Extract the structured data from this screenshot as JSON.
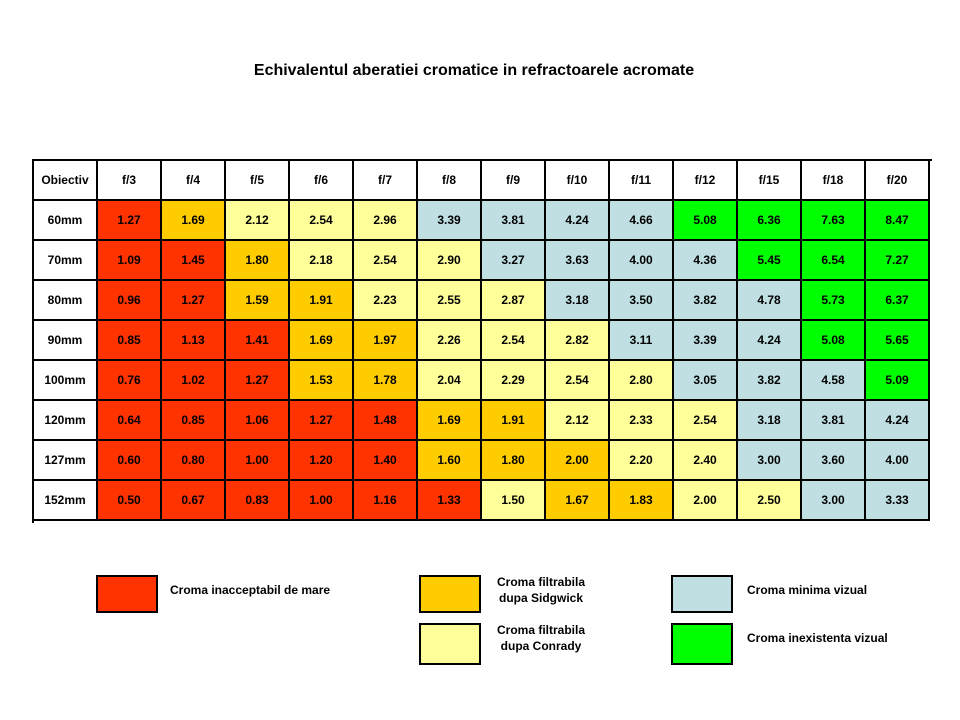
{
  "colors": {
    "red": "#ff3300",
    "orange": "#ffcc00",
    "yellow": "#ffff99",
    "blue": "#bfdfe3",
    "green": "#00ff00"
  },
  "chart_data": {
    "type": "table",
    "title": "Echivalentul aberatiei cromatice in refractoarele acromate",
    "corner_label": "Obiectiv",
    "columns": [
      "f/3",
      "f/4",
      "f/5",
      "f/6",
      "f/7",
      "f/8",
      "f/9",
      "f/10",
      "f/11",
      "f/12",
      "f/15",
      "f/18",
      "f/20"
    ],
    "rows": [
      {
        "label": "60mm",
        "values": [
          "1.27",
          "1.69",
          "2.12",
          "2.54",
          "2.96",
          "3.39",
          "3.81",
          "4.24",
          "4.66",
          "5.08",
          "6.36",
          "7.63",
          "8.47"
        ],
        "classes": [
          "red",
          "orange",
          "yellow",
          "yellow",
          "yellow",
          "blue",
          "blue",
          "blue",
          "blue",
          "green",
          "green",
          "green",
          "green"
        ]
      },
      {
        "label": "70mm",
        "values": [
          "1.09",
          "1.45",
          "1.80",
          "2.18",
          "2.54",
          "2.90",
          "3.27",
          "3.63",
          "4.00",
          "4.36",
          "5.45",
          "6.54",
          "7.27"
        ],
        "classes": [
          "red",
          "red",
          "orange",
          "yellow",
          "yellow",
          "yellow",
          "blue",
          "blue",
          "blue",
          "blue",
          "green",
          "green",
          "green"
        ]
      },
      {
        "label": "80mm",
        "values": [
          "0.96",
          "1.27",
          "1.59",
          "1.91",
          "2.23",
          "2.55",
          "2.87",
          "3.18",
          "3.50",
          "3.82",
          "4.78",
          "5.73",
          "6.37"
        ],
        "classes": [
          "red",
          "red",
          "orange",
          "orange",
          "yellow",
          "yellow",
          "yellow",
          "blue",
          "blue",
          "blue",
          "blue",
          "green",
          "green"
        ]
      },
      {
        "label": "90mm",
        "values": [
          "0.85",
          "1.13",
          "1.41",
          "1.69",
          "1.97",
          "2.26",
          "2.54",
          "2.82",
          "3.11",
          "3.39",
          "4.24",
          "5.08",
          "5.65"
        ],
        "classes": [
          "red",
          "red",
          "red",
          "orange",
          "orange",
          "yellow",
          "yellow",
          "yellow",
          "blue",
          "blue",
          "blue",
          "green",
          "green"
        ]
      },
      {
        "label": "100mm",
        "values": [
          "0.76",
          "1.02",
          "1.27",
          "1.53",
          "1.78",
          "2.04",
          "2.29",
          "2.54",
          "2.80",
          "3.05",
          "3.82",
          "4.58",
          "5.09"
        ],
        "classes": [
          "red",
          "red",
          "red",
          "orange",
          "orange",
          "yellow",
          "yellow",
          "yellow",
          "yellow",
          "blue",
          "blue",
          "blue",
          "green"
        ]
      },
      {
        "label": "120mm",
        "values": [
          "0.64",
          "0.85",
          "1.06",
          "1.27",
          "1.48",
          "1.69",
          "1.91",
          "2.12",
          "2.33",
          "2.54",
          "3.18",
          "3.81",
          "4.24"
        ],
        "classes": [
          "red",
          "red",
          "red",
          "red",
          "red",
          "orange",
          "orange",
          "yellow",
          "yellow",
          "yellow",
          "blue",
          "blue",
          "blue"
        ]
      },
      {
        "label": "127mm",
        "values": [
          "0.60",
          "0.80",
          "1.00",
          "1.20",
          "1.40",
          "1.60",
          "1.80",
          "2.00",
          "2.20",
          "2.40",
          "3.00",
          "3.60",
          "4.00"
        ],
        "classes": [
          "red",
          "red",
          "red",
          "red",
          "red",
          "orange",
          "orange",
          "orange",
          "yellow",
          "yellow",
          "blue",
          "blue",
          "blue"
        ]
      },
      {
        "label": "152mm",
        "values": [
          "0.50",
          "0.67",
          "0.83",
          "1.00",
          "1.16",
          "1.33",
          "1.50",
          "1.67",
          "1.83",
          "2.00",
          "2.50",
          "3.00",
          "3.33"
        ],
        "classes": [
          "red",
          "red",
          "red",
          "red",
          "red",
          "red",
          "yellow",
          "orange",
          "orange",
          "yellow",
          "yellow",
          "blue",
          "blue"
        ]
      }
    ]
  },
  "legend": [
    {
      "color": "red",
      "line1": "Croma inacceptabil de mare",
      "line2": ""
    },
    {
      "color": "orange",
      "line1": "Croma filtrabila",
      "line2": "dupa Sidgwick"
    },
    {
      "color": "yellow",
      "line1": "Croma filtrabila",
      "line2": "dupa Conrady"
    },
    {
      "color": "blue",
      "line1": "Croma minima vizual",
      "line2": ""
    },
    {
      "color": "green",
      "line1": "Croma inexistenta vizual",
      "line2": ""
    }
  ]
}
